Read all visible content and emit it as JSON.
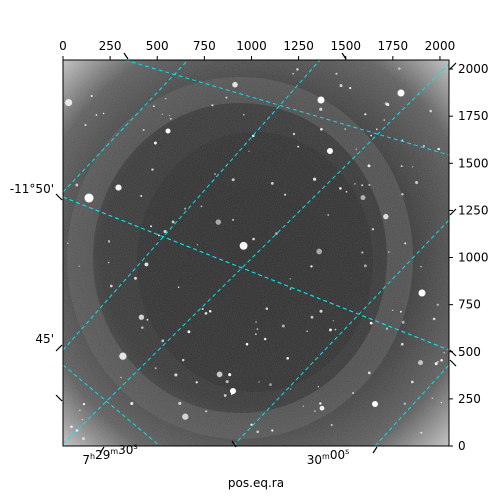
{
  "chart_data": {
    "type": "image",
    "title": "",
    "xlabel": "pos.eq.ra",
    "ylabel": "",
    "colormap": "gray",
    "pixel_axes": {
      "x": {
        "ticks": [
          0,
          250,
          500,
          750,
          1000,
          1250,
          1500,
          1750,
          2000
        ],
        "labels": [
          "0",
          "250",
          "500",
          "750",
          "1000",
          "1250",
          "1500",
          "1750",
          "2000"
        ],
        "range": [
          0,
          2048
        ],
        "position": "top"
      },
      "y": {
        "ticks": [
          0,
          250,
          500,
          750,
          1000,
          1250,
          1500,
          1750,
          2000
        ],
        "labels": [
          "0",
          "250",
          "500",
          "750",
          "1000",
          "1250",
          "1500",
          "1750",
          "2000"
        ],
        "range": [
          0,
          2048
        ],
        "position": "right"
      }
    },
    "world_axes": {
      "ra": {
        "labels": [
          "7h29m30s",
          "30m00s"
        ],
        "position": "bottom"
      },
      "dec": {
        "labels": [
          "-11°50'",
          "45'"
        ],
        "position": "left"
      }
    },
    "grid": {
      "on": true,
      "color": "#00e5ee",
      "style": "dashed"
    }
  }
}
